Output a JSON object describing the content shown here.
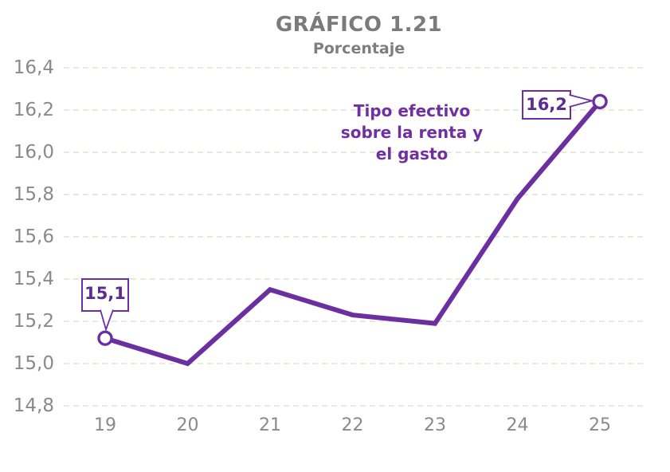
{
  "chart": {
    "title": "GRÁFICO 1.21",
    "subtitle": "Porcentaje"
  },
  "annotation": {
    "text": "Tipo efectivo sobre la renta y el gasto",
    "lines": [
      "Tipo efectivo",
      "sobre la renta y",
      "el gasto"
    ],
    "color": "#7030A0"
  },
  "chart_data": {
    "type": "line",
    "title": "GRÁFICO 1.21",
    "subtitle": "Porcentaje",
    "categories": [
      "19",
      "20",
      "21",
      "22",
      "23",
      "24",
      "25"
    ],
    "series": [
      {
        "name": "Tipo efectivo sobre la renta y el gasto",
        "values": [
          15.12,
          15.0,
          15.35,
          15.23,
          15.19,
          15.78,
          16.24
        ]
      }
    ],
    "point_labels": {
      "first": "15,1",
      "last": "16,2"
    },
    "yticklabels": [
      "16,4",
      "16,2",
      "16,0",
      "15,8",
      "15,6",
      "15,4",
      "15,2",
      "15,0",
      "14,8"
    ],
    "ylim": [
      14.8,
      16.4
    ],
    "ytick_step": 0.2,
    "xlabel": "",
    "ylabel": "",
    "legend": "none",
    "grid": "horizontal-dashed",
    "colors": {
      "line": "#6B2FA0",
      "marker_fill": "#FFFFFF",
      "grid": "#DBDAC6",
      "tick_text": "#8A8A8A",
      "title_text": "#7B7B7B",
      "callout_text": "#5B2C91"
    },
    "markers": "open circles on first and last points only"
  }
}
